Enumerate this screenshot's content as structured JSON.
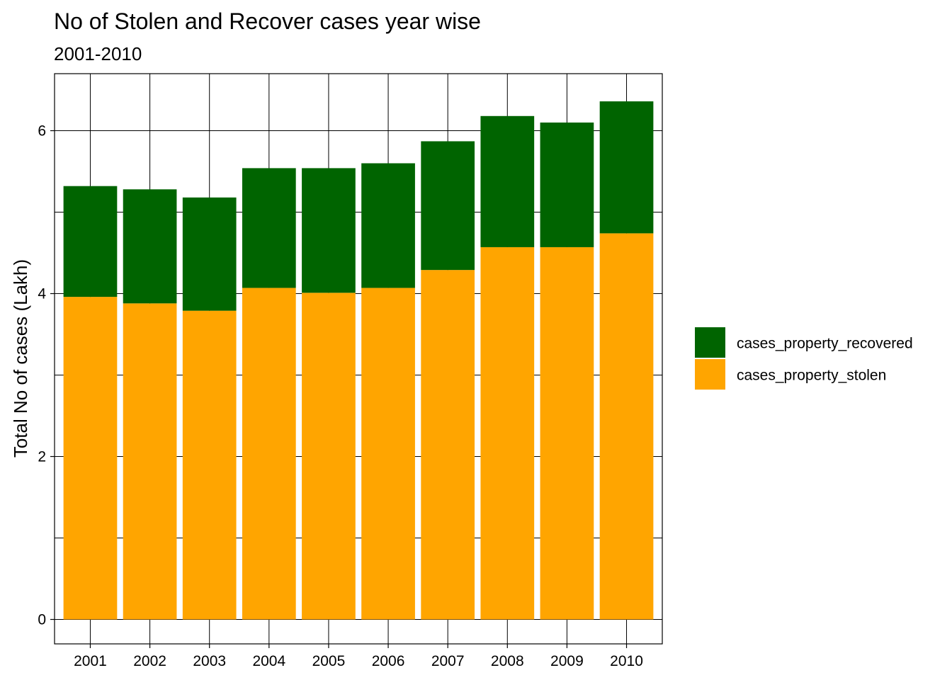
{
  "chart_data": {
    "type": "bar",
    "stacked": true,
    "title": "No of Stolen and Recover cases year wise",
    "subtitle": "2001-2010",
    "xlabel": "",
    "ylabel": "Total No of cases (Lakh)",
    "categories": [
      "2001",
      "2002",
      "2003",
      "2004",
      "2005",
      "2006",
      "2007",
      "2008",
      "2009",
      "2010"
    ],
    "series": [
      {
        "name": "cases_property_stolen",
        "color": "#FFA500",
        "values": [
          3.96,
          3.88,
          3.79,
          4.07,
          4.01,
          4.07,
          4.29,
          4.57,
          4.57,
          4.74
        ]
      },
      {
        "name": "cases_property_recovered",
        "color": "#006400",
        "values": [
          1.36,
          1.4,
          1.39,
          1.47,
          1.53,
          1.53,
          1.58,
          1.61,
          1.53,
          1.62
        ]
      }
    ],
    "ylim": [
      -0.3,
      6.7
    ],
    "yticks": [
      0,
      2,
      4,
      6
    ],
    "grid": true,
    "legend_position": "right",
    "legend_order": [
      "cases_property_recovered",
      "cases_property_stolen"
    ]
  }
}
